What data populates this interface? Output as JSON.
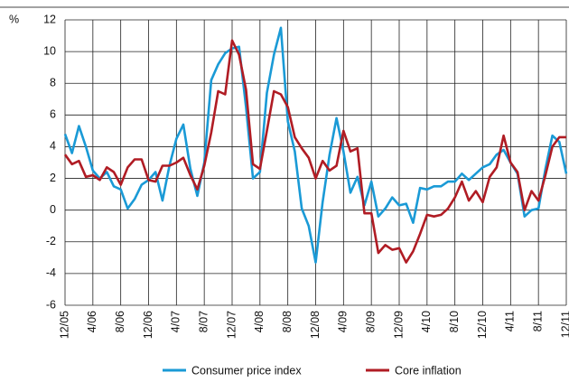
{
  "chart_data": {
    "type": "line",
    "y_label": "%",
    "categories": [
      "12/05",
      null,
      null,
      null,
      "4/06",
      null,
      null,
      null,
      "8/06",
      null,
      null,
      null,
      "12/06",
      null,
      null,
      null,
      "4/07",
      null,
      null,
      null,
      "8/07",
      null,
      null,
      null,
      "12/07",
      null,
      null,
      null,
      "4/08",
      null,
      null,
      null,
      "8/08",
      null,
      null,
      null,
      "12/08",
      null,
      null,
      null,
      "4/09",
      null,
      null,
      null,
      "8/09",
      null,
      null,
      null,
      "12/09",
      null,
      null,
      null,
      "4/10",
      null,
      null,
      null,
      "8/10",
      null,
      null,
      null,
      "12/10",
      null,
      null,
      null,
      "4/11",
      null,
      null,
      null,
      "8/11",
      null,
      null,
      null,
      "12/11"
    ],
    "series": [
      {
        "name": "Consumer price index",
        "color": "#1a9ad6",
        "values": [
          4.8,
          3.6,
          5.3,
          4.0,
          2.5,
          2.0,
          2.4,
          1.5,
          1.3,
          0.1,
          0.7,
          1.6,
          1.9,
          2.4,
          0.6,
          2.8,
          4.5,
          5.4,
          2.6,
          0.9,
          3.0,
          8.2,
          9.2,
          9.9,
          10.2,
          10.3,
          6.5,
          2.0,
          2.4,
          7.4,
          9.8,
          11.5,
          5.6,
          3.7,
          0.1,
          -1.0,
          -3.3,
          0.5,
          3.5,
          5.8,
          3.7,
          1.1,
          2.1,
          0.3,
          1.8,
          -0.4,
          0.1,
          0.8,
          0.3,
          0.4,
          -0.8,
          1.4,
          1.3,
          1.5,
          1.5,
          1.8,
          1.8,
          2.3,
          1.9,
          2.3,
          2.7,
          2.9,
          3.5,
          3.8,
          3.0,
          2.3,
          -0.4,
          0.0,
          0.1,
          2.6,
          4.7,
          4.3,
          2.3
        ]
      },
      {
        "name": "Core inflation",
        "color": "#b01c24",
        "values": [
          3.5,
          2.9,
          3.1,
          2.1,
          2.2,
          1.9,
          2.7,
          2.4,
          1.6,
          2.7,
          3.2,
          3.2,
          1.9,
          1.8,
          2.8,
          2.8,
          3.0,
          3.3,
          2.2,
          1.3,
          2.8,
          4.9,
          7.5,
          7.3,
          10.7,
          9.8,
          7.6,
          2.9,
          2.6,
          5.0,
          7.5,
          7.3,
          6.5,
          4.6,
          3.9,
          3.3,
          2.0,
          3.1,
          2.5,
          2.8,
          5.0,
          3.7,
          3.9,
          -0.2,
          -0.2,
          -2.7,
          -2.2,
          -2.5,
          -2.4,
          -3.3,
          -2.6,
          -1.5,
          -0.3,
          -0.4,
          -0.3,
          0.1,
          0.8,
          1.8,
          0.6,
          1.2,
          0.5,
          2.1,
          2.7,
          4.7,
          3.0,
          2.4,
          0.0,
          1.2,
          0.6,
          2.2,
          4.0,
          4.6,
          4.6
        ]
      }
    ],
    "ylim": [
      -6,
      12
    ],
    "yticks": [
      -6,
      -4,
      -2,
      0,
      2,
      4,
      6,
      8,
      10,
      12
    ],
    "grid": true
  }
}
